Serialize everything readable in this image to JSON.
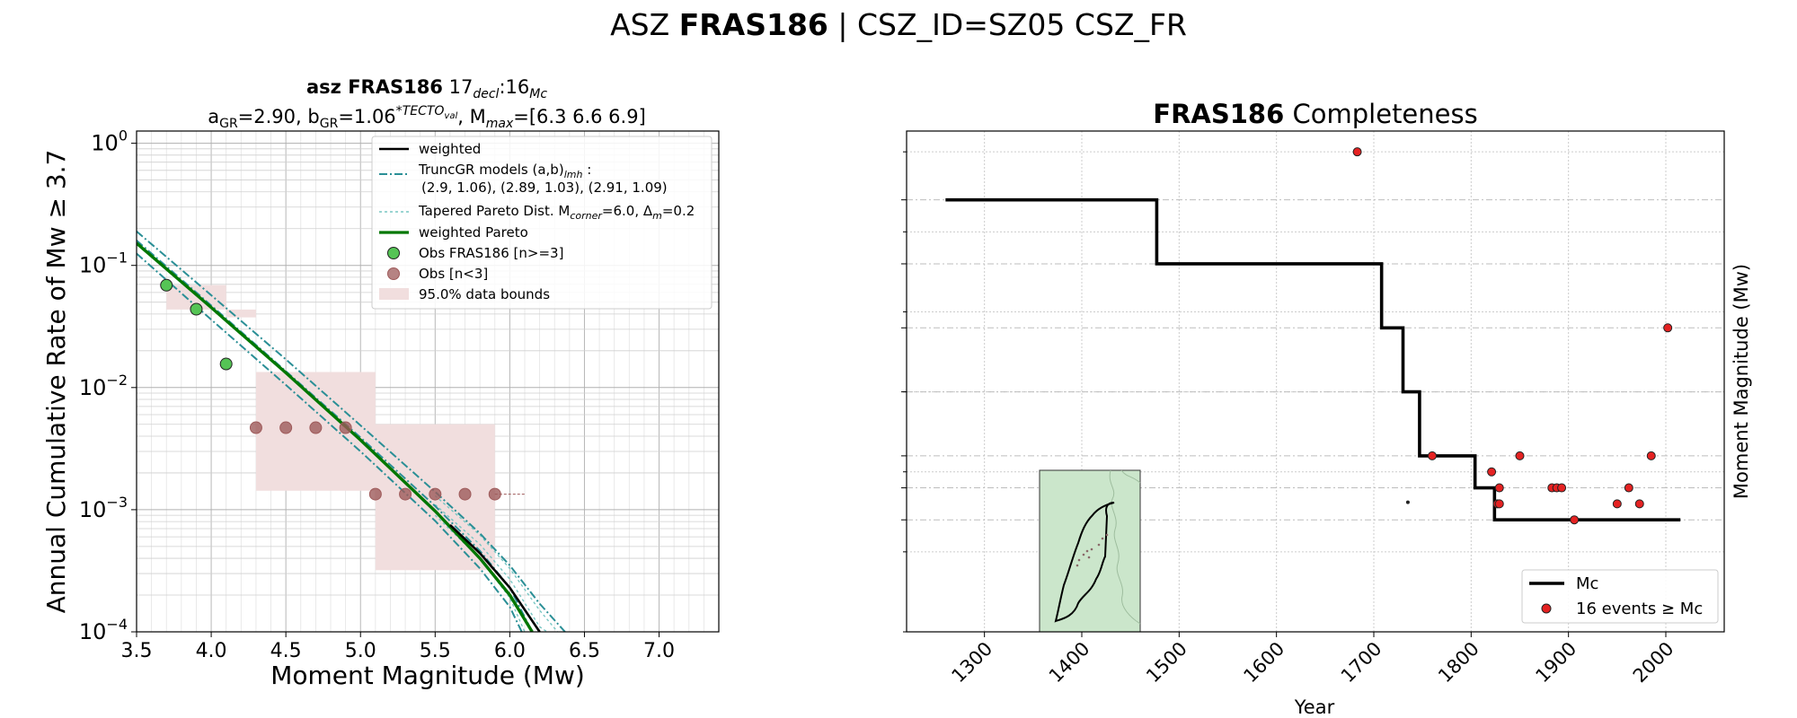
{
  "figure": {
    "title_prefix": "ASZ ",
    "title_bold": "FRAS186",
    "title_suffix": " | CSZ_ID=SZ05 CSZ_FR"
  },
  "colors": {
    "green_line": "#007700",
    "teal": "#2a8f96",
    "teal_light": "#78c6c3",
    "obs_green": "#55c455",
    "obs_brown": "#9e5a5a",
    "band": "#f1dede",
    "event_red": "#e52222",
    "inset_fill": "#cbe6cb"
  },
  "chart_data": [
    {
      "type": "line",
      "title_bold": "asz FRAS186",
      "title_rest": "17",
      "title_sub1": "decl",
      "title_mid": ":16",
      "title_sub2": "Mc",
      "title_line2": {
        "a_label": "a",
        "a_sub": "GR",
        "a_text": "=2.90,  ",
        "b_label": "b",
        "b_sub": "GR",
        "b_text": "=1.06",
        "b_sup": "*TECTO",
        "b_sup_sub": "val",
        "m_text": ", M",
        "m_sub": "max",
        "m_val": "=[6.3 6.6 6.9]"
      },
      "xlabel": "Moment Magnitude (Mw)",
      "ylabel": "Annual Cumulative Rate of Mw ≥ 3.7",
      "xlim": [
        3.5,
        7.4
      ],
      "ylim_log10": [
        -4,
        0.1
      ],
      "x_ticks": [
        "3.5",
        "4.0",
        "4.5",
        "5.0",
        "5.5",
        "6.0",
        "6.5",
        "7.0"
      ],
      "x_tick_values": [
        3.5,
        4.0,
        4.5,
        5.0,
        5.5,
        6.0,
        6.5,
        7.0
      ],
      "y_ticks": [
        {
          "base": "10",
          "exp": "0",
          "value": 0
        },
        {
          "base": "10",
          "exp": "−1",
          "value": -1
        },
        {
          "base": "10",
          "exp": "−2",
          "value": -2
        },
        {
          "base": "10",
          "exp": "−3",
          "value": -3
        },
        {
          "base": "10",
          "exp": "−4",
          "value": -4
        }
      ],
      "grid": true,
      "legend_position": "top-right",
      "legend": {
        "weighted": "weighted",
        "trunc_label": "TruncGR models (a,b)",
        "trunc_sub": "lmh",
        "trunc_colon": " :",
        "trunc_values": "(2.9, 1.06), (2.89, 1.03), (2.91, 1.09)",
        "tapered_prefix": "Tapered Pareto Dist. M",
        "tapered_sub": "corner",
        "tapered_mid": "=6.0, Δ",
        "tapered_sub2": "m",
        "tapered_suffix": "=0.2",
        "weighted_pareto": "weighted Pareto",
        "obs_main": "Obs FRAS186 [n>=3]",
        "obs_small": "Obs [n<3]",
        "bounds": "95.0% data bounds"
      },
      "series": {
        "weighted_pareto": [
          [
            3.5,
            0.152
          ],
          [
            4.0,
            0.0452
          ],
          [
            4.5,
            0.0132
          ],
          [
            5.0,
            0.00372
          ],
          [
            5.5,
            0.000974
          ],
          [
            5.8,
            0.0004
          ],
          [
            6.0,
            0.0002
          ],
          [
            6.15,
            0.0001
          ]
        ],
        "weighted": [
          [
            5.6,
            0.00075
          ],
          [
            5.8,
            0.00044
          ],
          [
            6.0,
            0.00023
          ],
          [
            6.2,
            0.0001
          ]
        ],
        "trunc_gr": [
          [
            [
              3.5,
              0.19
            ],
            [
              4.0,
              0.057
            ],
            [
              4.5,
              0.017
            ],
            [
              5.0,
              0.0049
            ],
            [
              5.5,
              0.0014
            ],
            [
              5.8,
              0.00064
            ],
            [
              6.0,
              0.00035
            ],
            [
              6.2,
              0.00017
            ],
            [
              6.37,
              0.0001
            ]
          ],
          [
            [
              3.5,
              0.125
            ],
            [
              4.0,
              0.036
            ],
            [
              4.5,
              0.0105
            ],
            [
              5.0,
              0.003
            ],
            [
              5.5,
              0.00081
            ],
            [
              5.8,
              0.00033
            ],
            [
              6.0,
              0.00016
            ],
            [
              6.08,
              0.0001
            ]
          ],
          [
            [
              3.5,
              0.16
            ],
            [
              4.0,
              0.047
            ],
            [
              4.5,
              0.0136
            ],
            [
              5.0,
              0.0039
            ],
            [
              5.5,
              0.00107
            ],
            [
              5.8,
              0.00046
            ],
            [
              6.0,
              0.00023
            ],
            [
              6.15,
              0.0001
            ]
          ]
        ],
        "tapered": [
          [
            [
              5.5,
              0.0011
            ],
            [
              5.8,
              0.00052
            ],
            [
              6.0,
              0.00027
            ],
            [
              6.2,
              0.00011
            ],
            [
              6.25,
              0.0001
            ]
          ],
          [
            [
              5.5,
              0.0009
            ],
            [
              5.8,
              0.0004
            ],
            [
              6.0,
              0.00019
            ],
            [
              6.1,
              0.0001
            ]
          ],
          [
            [
              5.5,
              0.0013
            ],
            [
              5.8,
              0.00062
            ],
            [
              6.0,
              0.00033
            ],
            [
              6.2,
              0.00015
            ],
            [
              6.32,
              0.0001
            ]
          ]
        ],
        "obs_main": [
          [
            3.7,
            0.0688
          ],
          [
            3.9,
            0.0438
          ],
          [
            4.1,
            0.0156
          ]
        ],
        "obs_small": [
          [
            4.3,
            0.00469
          ],
          [
            4.5,
            0.00469
          ],
          [
            4.7,
            0.00469
          ],
          [
            4.9,
            0.00469
          ],
          [
            5.1,
            0.00134
          ],
          [
            5.3,
            0.00134
          ],
          [
            5.5,
            0.00134
          ],
          [
            5.7,
            0.00134
          ],
          [
            5.9,
            0.00134
          ]
        ],
        "obs_dashed_tail": [
          [
            5.9,
            0.00134
          ],
          [
            6.1,
            0.00134
          ]
        ],
        "bounds_upper": [
          [
            3.7,
            0.0688
          ],
          [
            4.1,
            0.0375
          ],
          [
            4.3,
            0.0134
          ],
          [
            4.9,
            0.0134
          ],
          [
            5.1,
            0.005
          ],
          [
            5.9,
            0.005
          ]
        ],
        "bounds_lower": [
          [
            3.7,
            0.0435
          ],
          [
            4.3,
            0.00143
          ],
          [
            4.9,
            0.00143
          ],
          [
            5.1,
            0.00032
          ],
          [
            5.9,
            0.00032
          ]
        ]
      }
    },
    {
      "type": "line",
      "title_bold": "FRAS186",
      "title_rest": " Completeness",
      "xlabel": "Year",
      "ylabel": "Moment Magnitude (Mw)",
      "xlim": [
        1220,
        2060
      ],
      "ylim": [
        3.0,
        6.13
      ],
      "x_ticks": [
        "1300",
        "1400",
        "1500",
        "1600",
        "1700",
        "1800",
        "1900",
        "2000"
      ],
      "x_tick_values": [
        1300,
        1400,
        1500,
        1600,
        1700,
        1800,
        1900,
        2000
      ],
      "y_ticks_small": [
        "3.0",
        "3.5",
        "4.0",
        "4.5",
        "5.0",
        "5.5",
        "6.0"
      ],
      "y_ticks_small_values": [
        3.0,
        3.5,
        4.0,
        4.5,
        5.0,
        5.5,
        6.0
      ],
      "y_ticks_bold": [
        "3.7",
        "3.9",
        "4.1",
        "4.5",
        "4.9",
        "5.3",
        "5.7"
      ],
      "y_ticks_bold_values": [
        3.7,
        3.9,
        4.1,
        4.5,
        4.9,
        5.3,
        5.7
      ],
      "grid": true,
      "legend_position": "bottom-right",
      "legend": {
        "mc": "Mc",
        "events": "16 events ≥ Mc"
      },
      "mc_step": [
        [
          1260,
          5.7
        ],
        [
          1477,
          5.7
        ],
        [
          1477,
          5.3
        ],
        [
          1708,
          5.3
        ],
        [
          1708,
          4.9
        ],
        [
          1730,
          4.9
        ],
        [
          1730,
          4.5
        ],
        [
          1747,
          4.5
        ],
        [
          1747,
          4.1
        ],
        [
          1804,
          4.1
        ],
        [
          1804,
          3.9
        ],
        [
          1824,
          3.9
        ],
        [
          1824,
          3.7
        ],
        [
          2015,
          3.7
        ]
      ],
      "events": [
        [
          1683,
          6.0
        ],
        [
          1760,
          4.1
        ],
        [
          1821,
          4.0
        ],
        [
          1829,
          3.9
        ],
        [
          1827,
          3.8
        ],
        [
          1829,
          3.8
        ],
        [
          1850,
          4.1
        ],
        [
          1883,
          3.9
        ],
        [
          1888,
          3.9
        ],
        [
          1893,
          3.9
        ],
        [
          1906,
          3.7
        ],
        [
          1950,
          3.8
        ],
        [
          1962,
          3.9
        ],
        [
          1973,
          3.8
        ],
        [
          1985,
          4.1
        ],
        [
          2002,
          4.9
        ]
      ],
      "small_event": [
        1735,
        3.81
      ]
    }
  ]
}
